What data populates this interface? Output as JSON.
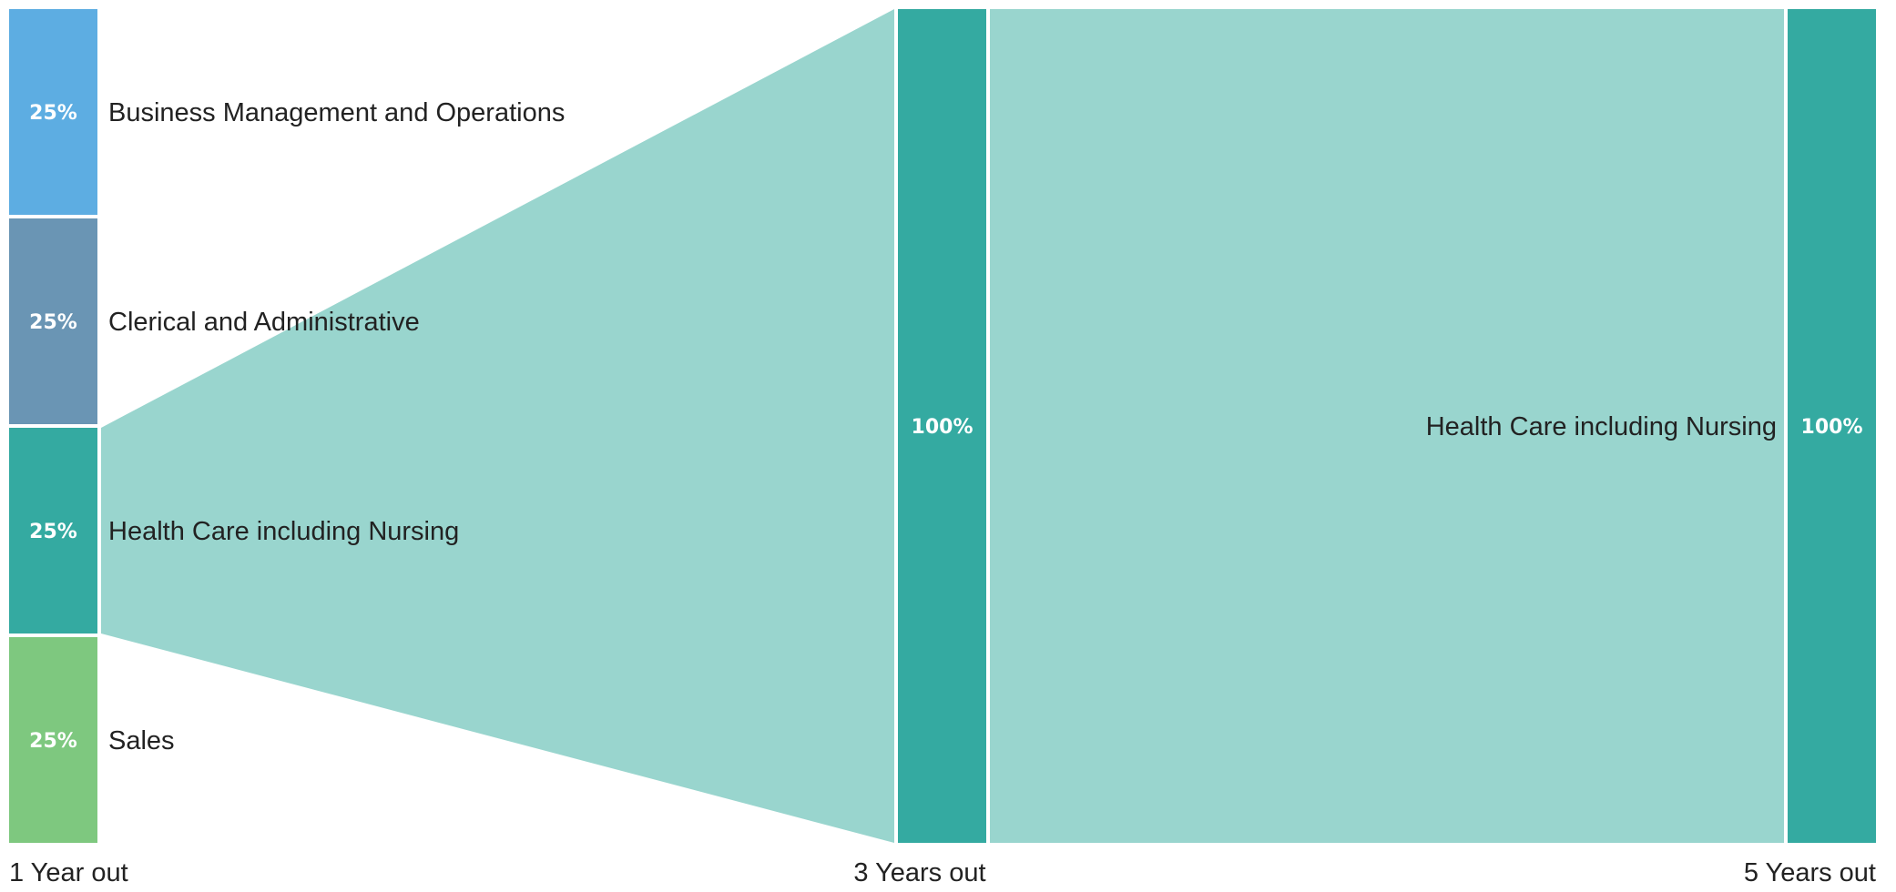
{
  "chart_data": {
    "type": "sankey",
    "stages": [
      {
        "label": "1 Year out",
        "nodes": [
          {
            "name": "Business Management and Operations",
            "percent": "25%",
            "value": 25,
            "color": "#5dade2"
          },
          {
            "name": "Clerical and Administrative",
            "percent": "25%",
            "value": 25,
            "color": "#6a95b4"
          },
          {
            "name": "Health Care including Nursing",
            "percent": "25%",
            "value": 25,
            "color": "#34aaa1"
          },
          {
            "name": "Sales",
            "percent": "25%",
            "value": 25,
            "color": "#7ec87f"
          }
        ]
      },
      {
        "label": "3 Years out",
        "nodes": [
          {
            "name": "",
            "percent": "100%",
            "value": 100,
            "color": "#34aaa1"
          }
        ]
      },
      {
        "label": "5 Years out",
        "nodes": [
          {
            "name": "Health Care including Nursing",
            "percent": "100%",
            "value": 100,
            "color": "#34aaa1"
          }
        ]
      }
    ],
    "flows": [
      {
        "from_stage": 0,
        "from_node": 2,
        "to_stage": 1,
        "to_node": 0,
        "value": 25,
        "color": "#99d5ce"
      },
      {
        "from_stage": 1,
        "from_node": 0,
        "to_stage": 2,
        "to_node": 0,
        "value": 100,
        "color": "#99d5ce"
      }
    ]
  }
}
